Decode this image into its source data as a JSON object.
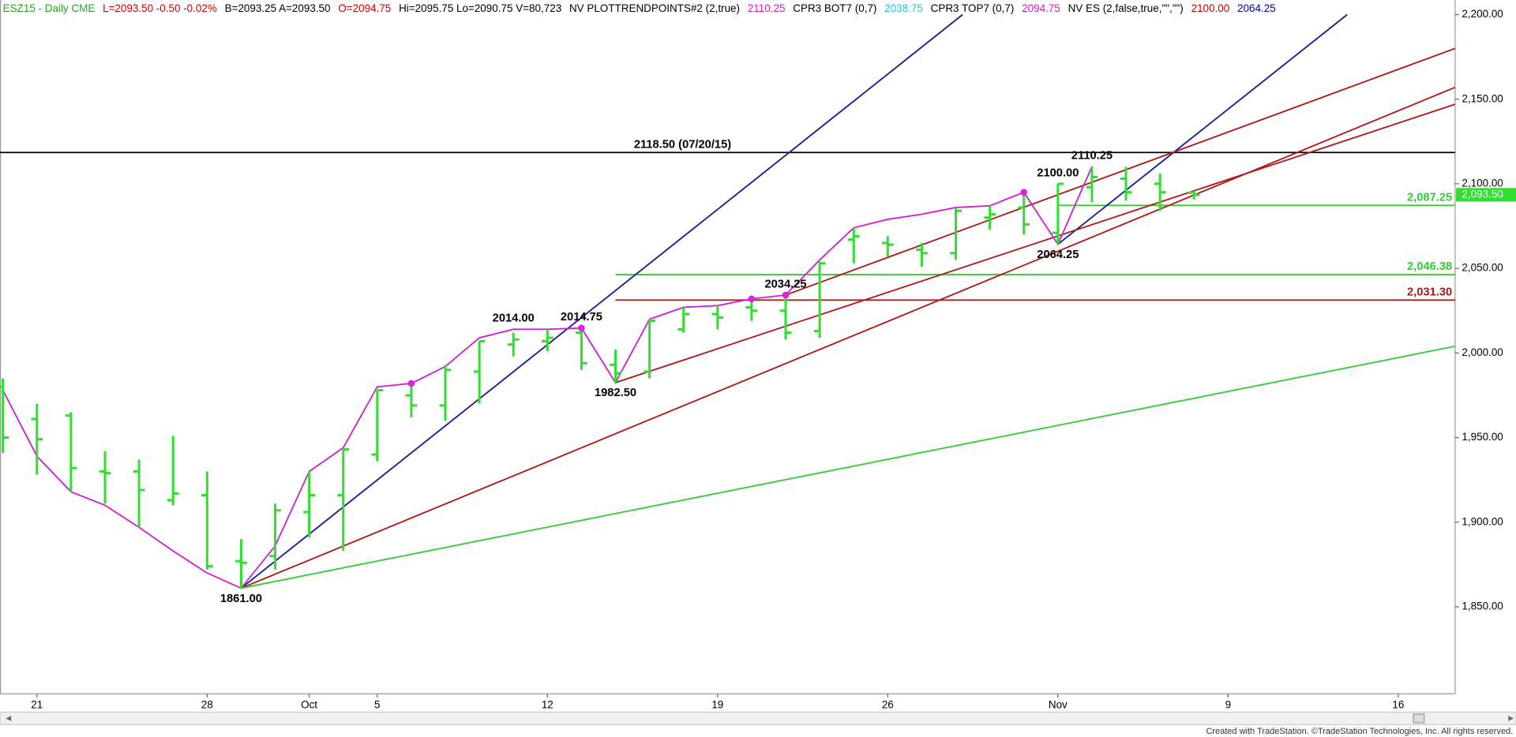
{
  "chart_data": {
    "type": "ohlc",
    "header": [
      {
        "text": "ESZ15 - Daily  CME",
        "color": "#22aa22"
      },
      {
        "text": "L=2093.50  -0.50  -0.02%",
        "color": "#cc0000"
      },
      {
        "text": "B=2093.25  A=2093.50",
        "color": "#000000"
      },
      {
        "text": "O=2094.75",
        "color": "#cc0000"
      },
      {
        "text": "Hi=2095.75  Lo=2090.75  V=80,723",
        "color": "#000000"
      },
      {
        "text": "NV  PLOTTRENDPOINTS#2 (2,true)",
        "color": "#000000"
      },
      {
        "text": "2110.25",
        "color": "#d020d0"
      },
      {
        "text": "CPR3 BOT7 (0,7)",
        "color": "#000000"
      },
      {
        "text": "2038.75",
        "color": "#22cccc"
      },
      {
        "text": "CPR3 TOP7 (0,7)",
        "color": "#000000"
      },
      {
        "text": "2094.75",
        "color": "#d020d0"
      },
      {
        "text": "NV ES (2,false,true,\"\",\"\")",
        "color": "#000000"
      },
      {
        "text": "2100.00",
        "color": "#cc0000"
      },
      {
        "text": "2064.25",
        "color": "#000099"
      }
    ],
    "footer": "Created with TradeStation. ©TradeStation Technologies, Inc. All rights reserved.",
    "categories": [
      null,
      "21",
      null,
      null,
      null,
      null,
      "28",
      null,
      null,
      "Oct",
      null,
      "5",
      null,
      null,
      null,
      null,
      "12",
      null,
      null,
      null,
      null,
      "19",
      null,
      null,
      null,
      null,
      "26",
      null,
      null,
      null,
      null,
      "Nov",
      null,
      null,
      null,
      null,
      "9",
      null,
      null,
      null,
      null,
      "16",
      null
    ],
    "color": "#33dd33",
    "open": [
      1980,
      1961,
      1963,
      1930,
      1930,
      1913,
      1916,
      1877,
      1880,
      1906,
      1916,
      1940,
      1975,
      1969,
      1989,
      2005,
      2007,
      2012,
      1993,
      1989,
      2014,
      2023,
      2027,
      2025,
      2013,
      2067,
      2065,
      2061,
      2059,
      2080,
      2086,
      2071,
      2098,
      2103,
      2100,
      2094.75,
      null,
      null,
      null,
      null,
      null,
      null,
      null
    ],
    "high": [
      1985,
      1970,
      1965,
      1942,
      1937,
      1951,
      1930,
      1890,
      1911,
      1930,
      1943,
      1978,
      1981,
      1993,
      2007,
      2012,
      2014,
      2014.75,
      2002,
      2020,
      2027,
      2028,
      2033,
      2034.25,
      2054,
      2074,
      2069,
      2065,
      2086,
      2087,
      2094,
      2100,
      2110.25,
      2110,
      2106,
      2095.75,
      null,
      null,
      null,
      null,
      null,
      null,
      null
    ],
    "low": [
      1941,
      1928,
      1918,
      1911,
      1897,
      1910,
      1872,
      1861,
      1872,
      1891,
      1883,
      1936,
      1962,
      1960,
      1970,
      1998,
      2001,
      1990,
      1982.5,
      1985,
      2012,
      2014,
      2019,
      2008,
      2009,
      2053,
      2057,
      2051,
      2055,
      2073,
      2070,
      2064.25,
      2089,
      2090,
      2084,
      2090.75,
      null,
      null,
      null,
      null,
      null,
      null,
      null
    ],
    "close": [
      1950,
      1949,
      1932,
      1929,
      1919,
      1917,
      1874,
      1876,
      1907,
      1916,
      1943,
      1978,
      1969,
      1990,
      2007,
      2008,
      2009,
      1994,
      1988,
      2019,
      2023,
      2021,
      2025,
      2012,
      2053,
      2069,
      2064,
      2059,
      2084,
      2082,
      2076,
      2100,
      2104,
      2095,
      2095,
      2093.5,
      null,
      null,
      null,
      null,
      null,
      null,
      null
    ],
    "swing": {
      "color": "#d020d0",
      "values": [
        1978,
        1939,
        1918,
        1910,
        1897,
        1883,
        1870,
        1861,
        1886,
        1930,
        1944,
        1980,
        1982,
        1992,
        2009,
        2014,
        2014,
        2014.75,
        1982.5,
        2020,
        2027,
        2028,
        2032,
        2034.25,
        2055,
        2074,
        2079,
        2082,
        2086,
        2087,
        2095,
        2064.25,
        2110.25,
        null,
        null,
        null,
        null,
        null,
        null,
        null,
        null,
        null,
        null
      ]
    },
    "swing_points": {
      "color": "#e020e0",
      "values": [
        null,
        null,
        null,
        null,
        null,
        null,
        null,
        null,
        null,
        null,
        null,
        null,
        1982,
        null,
        null,
        null,
        null,
        2014.75,
        null,
        null,
        null,
        null,
        2032,
        2034.25,
        null,
        null,
        null,
        null,
        null,
        null,
        2095,
        null,
        null,
        null,
        null,
        null,
        null,
        null,
        null,
        null,
        null,
        null,
        null
      ]
    },
    "trendlines": [
      {
        "color": "#1a1a99",
        "x": [
          7,
          28.2
        ],
        "y": [
          1861,
          2200
        ]
      },
      {
        "color": "#1a1a99",
        "x": [
          31,
          39.5
        ],
        "y": [
          2064.25,
          2200
        ]
      },
      {
        "color": "#b01818",
        "x": [
          7,
          42.67
        ],
        "y": [
          1861,
          2157
        ]
      },
      {
        "color": "#b01818",
        "x": [
          18,
          42.67
        ],
        "y": [
          1982.5,
          2147
        ]
      },
      {
        "color": "#b01818",
        "x": [
          23,
          42.67
        ],
        "y": [
          2034.25,
          2180
        ]
      },
      {
        "color": "#33cc33",
        "x": [
          7,
          42.67
        ],
        "y": [
          1861,
          2004
        ]
      }
    ],
    "levels": [
      {
        "value": 2118.5,
        "label": "2118.50 (07/20/15)",
        "color": "#000000"
      },
      {
        "value": 2087.25,
        "label": "2,087.25",
        "color": "#33cc33",
        "start": 31
      },
      {
        "value": 2046.38,
        "label": "2,046.38",
        "color": "#33cc33",
        "start": 18
      },
      {
        "value": 2031.3,
        "label": "2,031.30",
        "color": "#b01818",
        "start": 18
      }
    ],
    "annotations": [
      {
        "label": "1861.00",
        "value": 1861,
        "x": 7,
        "position": "below"
      },
      {
        "label": "2014.00",
        "value": 2014,
        "x": 15,
        "position": "above"
      },
      {
        "label": "2014.75",
        "value": 2014.75,
        "x": 17,
        "position": "above"
      },
      {
        "label": "1982.50",
        "value": 1982.5,
        "x": 18,
        "position": "below"
      },
      {
        "label": "2034.25",
        "value": 2034.25,
        "x": 23,
        "position": "above"
      },
      {
        "label": "2100.00",
        "value": 2100,
        "x": 31,
        "position": "above"
      },
      {
        "label": "2110.25",
        "value": 2110.25,
        "x": 32,
        "position": "above"
      },
      {
        "label": "2064.25",
        "value": 2064.25,
        "x": 31,
        "position": "below"
      }
    ],
    "last_price": {
      "value": 2093.5,
      "label": "2,093.50",
      "color": "#33dd33"
    },
    "ylim": [
      1798.6,
      2208.6
    ],
    "yticks": [
      {
        "value": 1850,
        "label": "1,850.00"
      },
      {
        "value": 1900,
        "label": "1,900.00"
      },
      {
        "value": 1950,
        "label": "1,950.00"
      },
      {
        "value": 2000,
        "label": "2,000.00"
      },
      {
        "value": 2050,
        "label": "2,050.00"
      },
      {
        "value": 2100,
        "label": "2,100.00"
      },
      {
        "value": 2150,
        "label": "2,150.00"
      },
      {
        "value": 2200,
        "label": "2,200.00"
      }
    ]
  }
}
